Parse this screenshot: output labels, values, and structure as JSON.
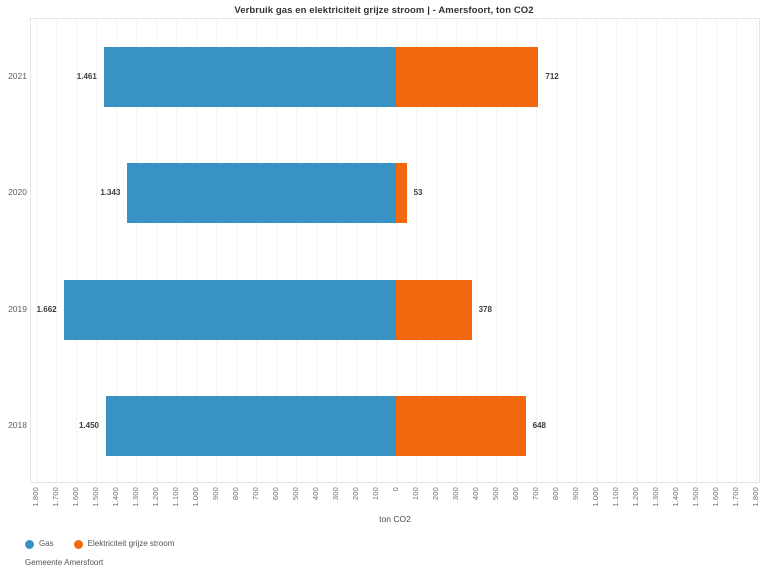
{
  "footer": "Gemeente Amersfoort",
  "chart_data": {
    "type": "bar",
    "variant": "horizontal-diverging-stacked",
    "title": "Verbruik gas en elektriciteit grijze stroom | - Amersfoort, ton CO2",
    "xlabel": "ton CO2",
    "categories": [
      "2021",
      "2020",
      "2019",
      "2018"
    ],
    "series": [
      {
        "name": "Gas",
        "color": "#3992C4",
        "direction": "left",
        "values": [
          1461,
          1343,
          1662,
          1450
        ],
        "labels": [
          "1.461",
          "1.343",
          "1.662",
          "1.450"
        ]
      },
      {
        "name": "Elektriciteit grijze stroom",
        "color": "#F1680E",
        "direction": "right",
        "values": [
          712,
          53,
          378,
          648
        ],
        "labels": [
          "712",
          "53",
          "378",
          "648"
        ]
      }
    ],
    "xlim": [
      -1800,
      1800
    ],
    "tick_step": 100,
    "x_ticks": [
      "1.800",
      "1.700",
      "1.600",
      "1.500",
      "1.400",
      "1.300",
      "1.200",
      "1.100",
      "1.000",
      "900",
      "800",
      "700",
      "600",
      "500",
      "400",
      "300",
      "200",
      "100",
      "0",
      "100",
      "200",
      "300",
      "400",
      "500",
      "600",
      "700",
      "800",
      "900",
      "1.000",
      "1.100",
      "1.200",
      "1.300",
      "1.400",
      "1.500",
      "1.600",
      "1.700",
      "1.800"
    ],
    "grid": true,
    "legend_position": "bottom-left"
  }
}
